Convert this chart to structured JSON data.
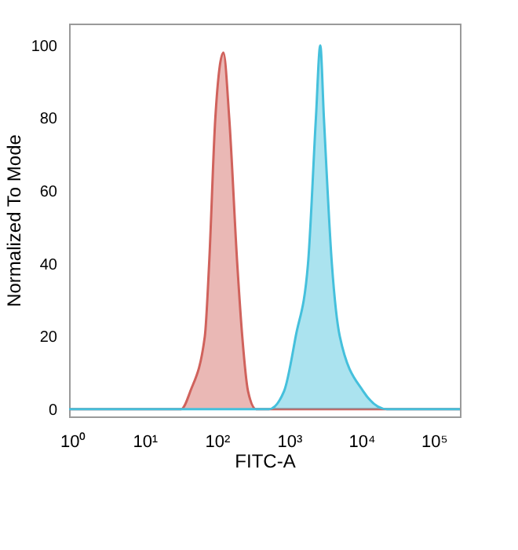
{
  "chart_data": {
    "type": "area",
    "xlabel": "FITC-A",
    "ylabel": "Normalized To Mode",
    "log": "x",
    "xlim": [
      0.9,
      230000
    ],
    "ylim": [
      -2,
      106
    ],
    "xticks": [
      {
        "value": 1,
        "label": "10⁰"
      },
      {
        "value": 10,
        "label": "10¹"
      },
      {
        "value": 100,
        "label": "10²"
      },
      {
        "value": 1000,
        "label": "10³"
      },
      {
        "value": 10000,
        "label": "10⁴"
      },
      {
        "value": 100000,
        "label": "10⁵"
      }
    ],
    "yticks": [
      0,
      20,
      40,
      60,
      80,
      100
    ],
    "grid": false,
    "series": [
      {
        "color": "#d0625c",
        "x": [
          0.9,
          32,
          43,
          68,
          78,
          95,
          123,
          148,
          191,
          224,
          269,
          347,
          230000
        ],
        "values": [
          0,
          0,
          5,
          20,
          40,
          80,
          98,
          80,
          40,
          20,
          5,
          0,
          0
        ]
      },
      {
        "color": "#45c0dc",
        "x": [
          0.9,
          525,
          851,
          1230,
          1820,
          2340,
          2690,
          3020,
          3890,
          5010,
          10500,
          22400,
          230000
        ],
        "values": [
          0,
          0,
          5,
          20,
          40,
          80,
          100,
          80,
          40,
          20,
          5,
          0,
          0
        ]
      }
    ]
  }
}
